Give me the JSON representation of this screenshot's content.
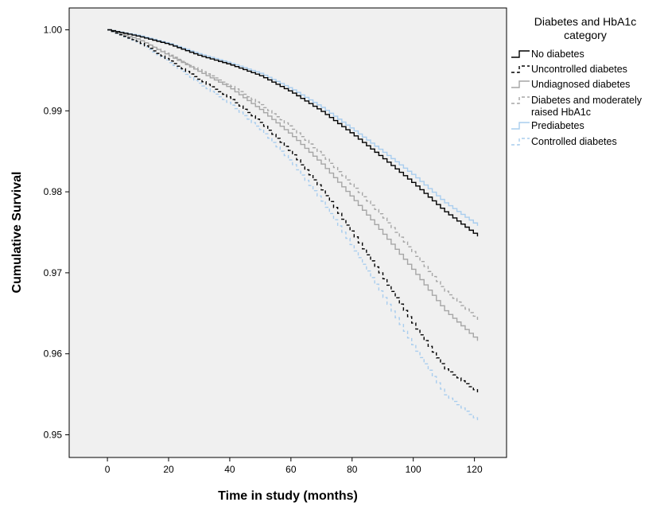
{
  "chart_data": {
    "type": "line",
    "xlabel": "Time in study (months)",
    "ylabel": "Cumulative Survival",
    "xlim": [
      -12.5,
      130.5
    ],
    "ylim": [
      0.9472,
      1.0027
    ],
    "xticks": [
      0,
      20,
      40,
      60,
      80,
      100,
      120
    ],
    "xtick_labels": [
      "0",
      "20",
      "40",
      "60",
      "80",
      "100",
      "120"
    ],
    "yticks": [
      0.95,
      0.96,
      0.97,
      0.98,
      0.99,
      1.0
    ],
    "ytick_labels": [
      "0.95",
      "0.96",
      "0.97",
      "0.98",
      "0.99",
      "1.00"
    ],
    "grid": false,
    "legend": {
      "title_line1": "Diabetes and HbA1c",
      "title_line2": "category",
      "placement": "right"
    },
    "x": [
      0,
      10,
      20,
      30,
      40,
      50,
      60,
      70,
      80,
      90,
      100,
      110,
      121
    ],
    "series": [
      {
        "name": "No diabetes",
        "color": "#000000",
        "dash": "solid",
        "values": [
          1.0,
          0.9992,
          0.9982,
          0.9968,
          0.9957,
          0.9943,
          0.9923,
          0.9899,
          0.9871,
          0.9841,
          0.981,
          0.9776,
          0.9745
        ]
      },
      {
        "name": "Uncontrolled diabetes",
        "color": "#000000",
        "dash": "dashed",
        "values": [
          1.0,
          0.9985,
          0.9962,
          0.9938,
          0.9915,
          0.9885,
          0.9848,
          0.9802,
          0.9748,
          0.9693,
          0.9635,
          0.9582,
          0.9552
        ]
      },
      {
        "name": "Undiagnosed diabetes",
        "color": "#a6a6a6",
        "dash": "solid",
        "values": [
          1.0,
          0.9988,
          0.9968,
          0.9948,
          0.9928,
          0.9901,
          0.987,
          0.9834,
          0.9792,
          0.9748,
          0.9702,
          0.9654,
          0.9616
        ]
      },
      {
        "name": "Diabetes and moderately raised HbA1c",
        "name_line1": "Diabetes and moderately",
        "name_line2": "raised HbA1c",
        "color": "#a6a6a6",
        "dash": "dashed",
        "values": [
          1.0,
          0.9988,
          0.9969,
          0.995,
          0.9931,
          0.9907,
          0.9879,
          0.9845,
          0.9807,
          0.9768,
          0.9724,
          0.9678,
          0.9642
        ]
      },
      {
        "name": "Prediabetes",
        "color": "#a9cdee",
        "dash": "solid",
        "values": [
          1.0,
          0.9993,
          0.9983,
          0.997,
          0.9959,
          0.9946,
          0.9927,
          0.9904,
          0.9877,
          0.9849,
          0.982,
          0.9787,
          0.9758
        ]
      },
      {
        "name": "Controlled diabetes",
        "color": "#a9cdee",
        "dash": "dashed",
        "values": [
          1.0,
          0.9984,
          0.996,
          0.9933,
          0.9908,
          0.9876,
          0.9836,
          0.9788,
          0.9731,
          0.967,
          0.9608,
          0.955,
          0.9517
        ]
      }
    ]
  }
}
